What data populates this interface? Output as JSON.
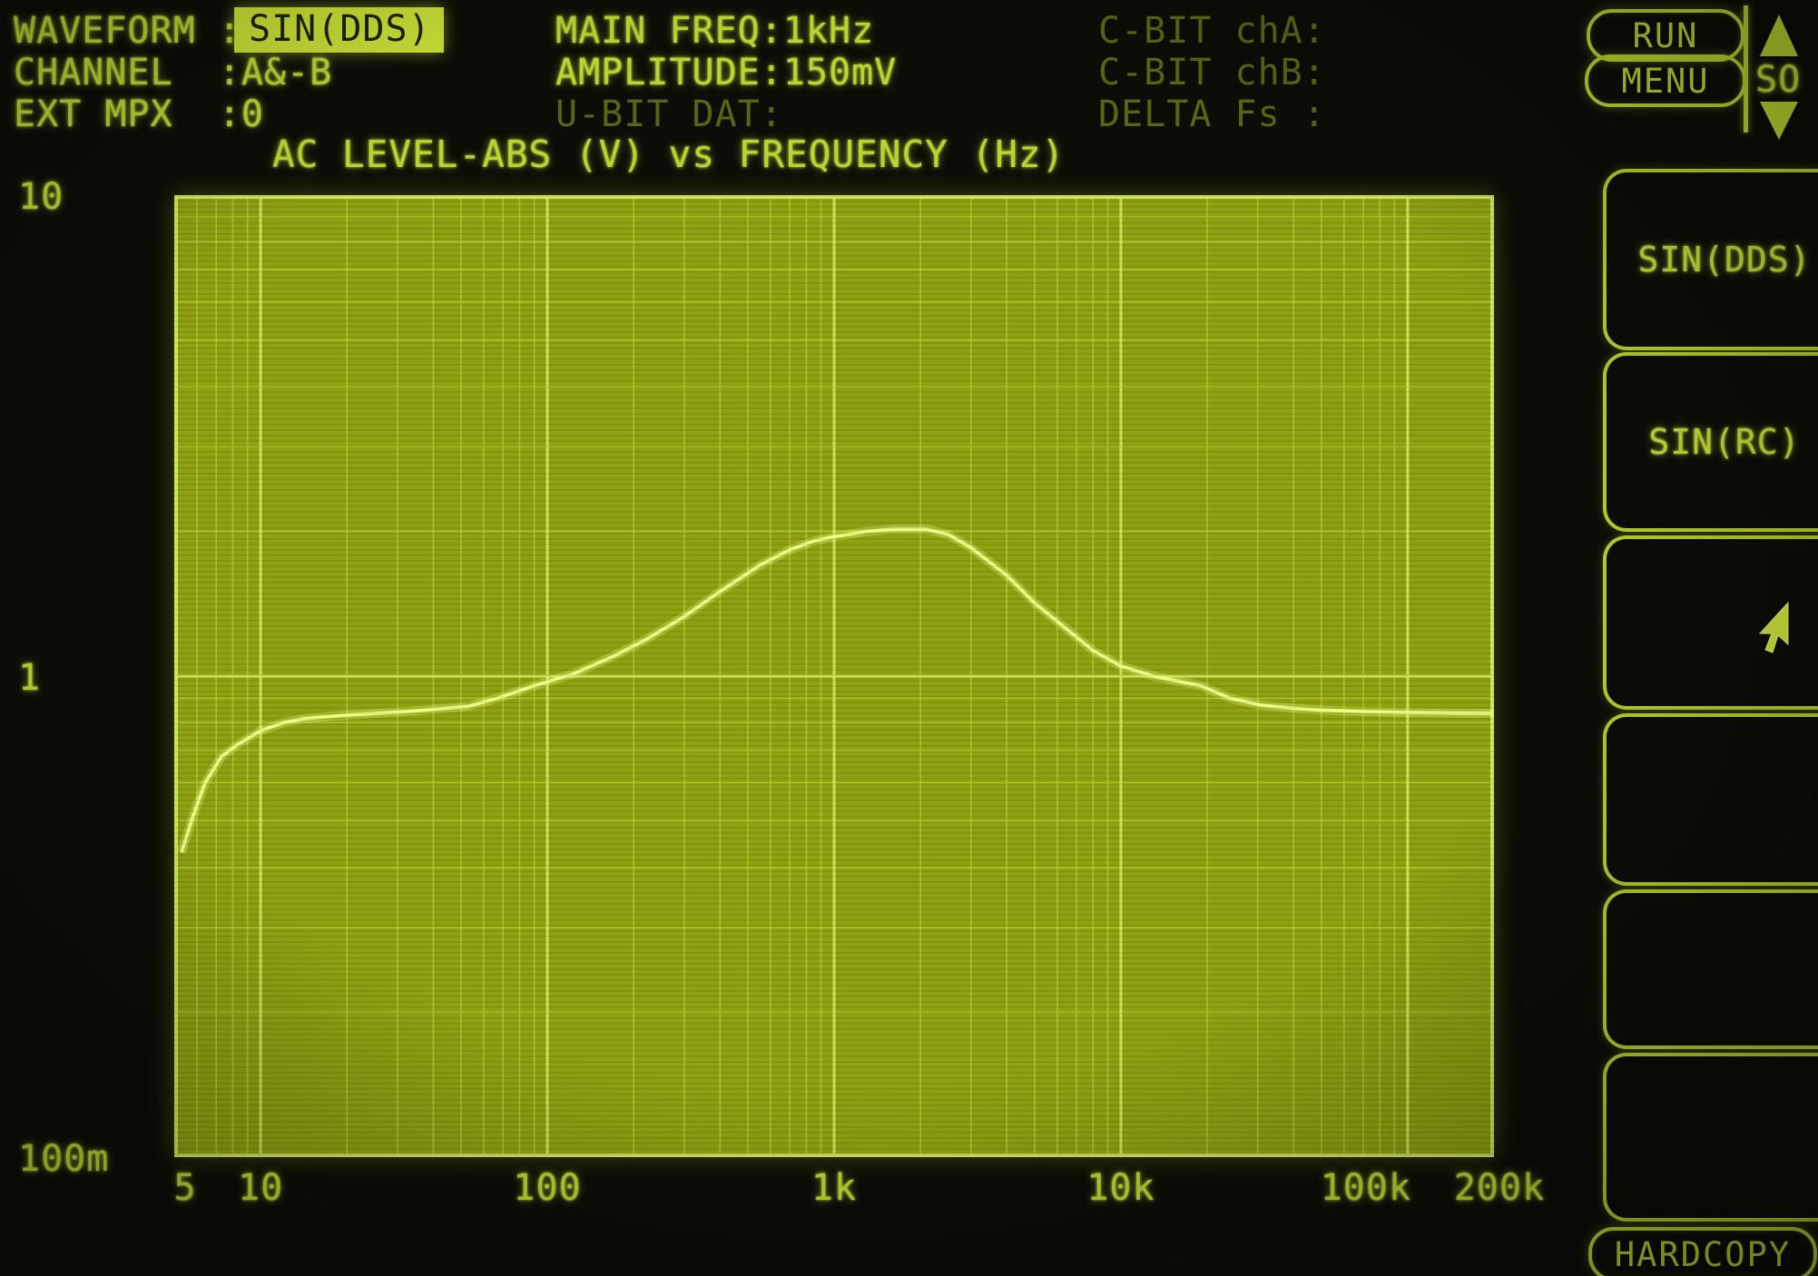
{
  "header": {
    "waveform_label": "WAVEFORM :",
    "waveform_value": "SIN(DDS)",
    "channel_row": "CHANNEL  :A&-B",
    "ext_mpx_row": "EXT MPX  :0",
    "main_freq_row": "MAIN FREQ:1kHz",
    "amplitude_row": "AMPLITUDE:150mV",
    "u_bit_row": "U-BIT DAT:",
    "c_bit_cha_row": "C-BIT chA:",
    "c_bit_chb_row": "C-BIT chB:",
    "delta_fs_row": "DELTA Fs :"
  },
  "buttons": {
    "run": "RUN",
    "menu": "MENU",
    "scroll_label": "SO",
    "up_arrow_icon": "filled-up-triangle",
    "down_arrow_icon": "filled-down-triangle",
    "hardcopy": "HARDCOPY"
  },
  "softkeys": [
    {
      "label": "SIN(DDS)"
    },
    {
      "label": "SIN(RC)"
    },
    {
      "label": ""
    },
    {
      "label": ""
    },
    {
      "label": ""
    },
    {
      "label": ""
    }
  ],
  "colors": {
    "text_green": "#bcd42e",
    "dim_green": "#57660f",
    "highlight_bg": "#c9e036",
    "plot_fill": "#8e9f10",
    "grid_minor": "#b5cb2d",
    "grid_major": "#d2e75a",
    "curve": "#eeff86",
    "background": "#0c0d06"
  },
  "chart_data": {
    "type": "line",
    "title": "AC LEVEL-ABS (V) vs FREQUENCY (Hz)",
    "xlabel": "FREQUENCY (Hz)",
    "ylabel": "AC LEVEL-ABS (V)",
    "x_scale": "log",
    "y_scale": "log",
    "xlim": [
      5,
      200000
    ],
    "ylim": [
      0.1,
      10
    ],
    "grid": "log major+minor, both axes",
    "legend": "none",
    "x_ticks": [
      {
        "value": 5,
        "label": "5"
      },
      {
        "value": 10,
        "label": "10"
      },
      {
        "value": 100,
        "label": "100"
      },
      {
        "value": 1000,
        "label": "1k"
      },
      {
        "value": 10000,
        "label": "10k"
      },
      {
        "value": 100000,
        "label": "100k"
      },
      {
        "value": 200000,
        "label": "200k"
      }
    ],
    "y_ticks": [
      {
        "value": 10,
        "label": "10"
      },
      {
        "value": 1,
        "label": "1"
      },
      {
        "value": 0.1,
        "label": "100m"
      }
    ],
    "series": [
      {
        "name": "AC LEVEL-ABS (V)",
        "points": [
          [
            5.3,
            0.43
          ],
          [
            5.8,
            0.51
          ],
          [
            6.4,
            0.6
          ],
          [
            7.3,
            0.68
          ],
          [
            8.3,
            0.72
          ],
          [
            10,
            0.77
          ],
          [
            12,
            0.8
          ],
          [
            14,
            0.815
          ],
          [
            20,
            0.83
          ],
          [
            33,
            0.845
          ],
          [
            53,
            0.865
          ],
          [
            67,
            0.9
          ],
          [
            90,
            0.955
          ],
          [
            123,
            1.01
          ],
          [
            170,
            1.1
          ],
          [
            220,
            1.19
          ],
          [
            300,
            1.33
          ],
          [
            400,
            1.5
          ],
          [
            550,
            1.7
          ],
          [
            700,
            1.83
          ],
          [
            850,
            1.91
          ],
          [
            1000,
            1.95
          ],
          [
            1300,
            2.0
          ],
          [
            1600,
            2.02
          ],
          [
            2100,
            2.02
          ],
          [
            2500,
            1.97
          ],
          [
            3000,
            1.85
          ],
          [
            4000,
            1.62
          ],
          [
            5000,
            1.42
          ],
          [
            6500,
            1.25
          ],
          [
            8000,
            1.13
          ],
          [
            10000,
            1.05
          ],
          [
            13000,
            1.0
          ],
          [
            16000,
            0.975
          ],
          [
            19000,
            0.955
          ],
          [
            24000,
            0.9
          ],
          [
            31000,
            0.87
          ],
          [
            40000,
            0.857
          ],
          [
            50000,
            0.85
          ],
          [
            70000,
            0.844
          ],
          [
            100000,
            0.84
          ],
          [
            140000,
            0.838
          ],
          [
            200000,
            0.837
          ]
        ]
      }
    ]
  }
}
